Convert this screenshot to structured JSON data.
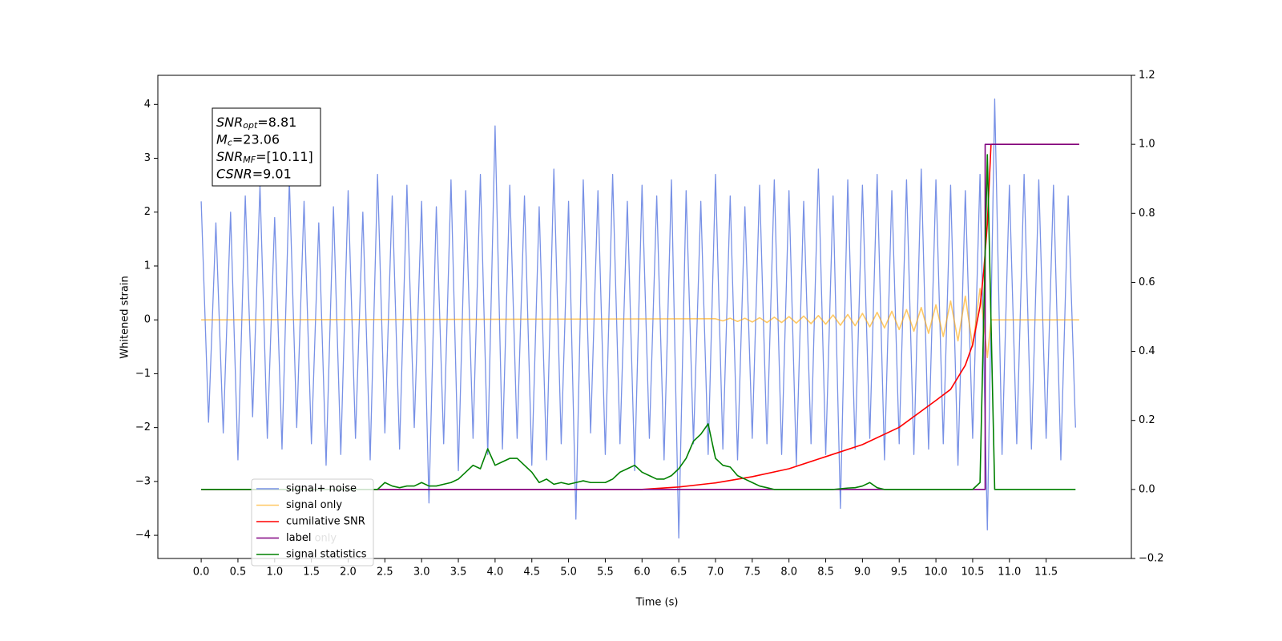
{
  "chart_data": {
    "type": "line",
    "xlabel": "Time (s)",
    "ylabel": "Whitened strain",
    "xlim": [
      -0.59,
      12.66
    ],
    "ylim": [
      -4.43,
      4.54
    ],
    "y2lim": [
      -0.2,
      1.2
    ],
    "xticks": [
      {
        "value": 0,
        "label": "0.0"
      },
      0.5,
      {
        "value": 1,
        "label": "1.0"
      },
      1.5,
      {
        "value": 2,
        "label": "2.0"
      },
      2.5,
      {
        "value": 3,
        "label": "3.0"
      },
      3.5,
      {
        "value": 4,
        "label": "4.0"
      },
      4.5,
      {
        "value": 5,
        "label": "5.0"
      },
      5.5,
      {
        "value": 6,
        "label": "6.0"
      },
      6.5,
      {
        "value": 7,
        "label": "7.0"
      },
      7.5,
      {
        "value": 8,
        "label": "8.0"
      },
      8.5,
      {
        "value": 9,
        "label": "9.0"
      },
      9.5,
      {
        "value": 10,
        "label": "10.0"
      },
      10.5,
      {
        "value": 11,
        "label": "11.0"
      },
      11.5
    ],
    "yticks": [
      {
        "value": -4,
        "label": "−4"
      },
      {
        "value": -3,
        "label": "−3"
      },
      {
        "value": -2,
        "label": "−2"
      },
      {
        "value": -1,
        "label": "−1"
      },
      0,
      1,
      2,
      3,
      4
    ],
    "y2ticks": [
      {
        "value": -0.2,
        "label": "−0.2"
      },
      {
        "value": 0,
        "label": "0.0"
      },
      0.2,
      0.4,
      0.6,
      0.8,
      {
        "value": 1,
        "label": "1.0"
      },
      1.2
    ],
    "annotations": [
      {
        "symbol": "SNR",
        "subscript": "opt",
        "text": "=8.81"
      },
      {
        "symbol": "M",
        "subscript": "c",
        "text": "=23.06"
      },
      {
        "symbol": "SNR",
        "subscript": "MF",
        "text": "=[10.11]"
      },
      {
        "symbol": "CSNR",
        "subscript": "",
        "text": "=9.01"
      }
    ],
    "hidden_legend_text": "label only",
    "legend": "lower left",
    "series": [
      {
        "name": "signal+ noise",
        "color": "#7891e6",
        "x": [
          0,
          0.1,
          0.2,
          0.3,
          0.4,
          0.5,
          0.6,
          0.7,
          0.8,
          0.9,
          1,
          1.1,
          1.2,
          1.3,
          1.4,
          1.5,
          1.6,
          1.7,
          1.8,
          1.9,
          2,
          2.1,
          2.2,
          2.3,
          2.4,
          2.5,
          2.6,
          2.7,
          2.8,
          2.9,
          3,
          3.1,
          3.2,
          3.3,
          3.4,
          3.5,
          3.6,
          3.7,
          3.8,
          3.9,
          4,
          4.1,
          4.2,
          4.3,
          4.4,
          4.5,
          4.6,
          4.7,
          4.8,
          4.9,
          5,
          5.1,
          5.2,
          5.3,
          5.4,
          5.5,
          5.6,
          5.7,
          5.8,
          5.9,
          6,
          6.1,
          6.2,
          6.3,
          6.4,
          6.5,
          6.6,
          6.7,
          6.8,
          6.9,
          7,
          7.1,
          7.2,
          7.3,
          7.4,
          7.5,
          7.6,
          7.7,
          7.8,
          7.9,
          8,
          8.1,
          8.2,
          8.3,
          8.4,
          8.5,
          8.6,
          8.7,
          8.8,
          8.9,
          9,
          9.1,
          9.2,
          9.3,
          9.4,
          9.5,
          9.6,
          9.7,
          9.8,
          9.9,
          10,
          10.1,
          10.2,
          10.3,
          10.4,
          10.5,
          10.6,
          10.7,
          10.8,
          10.9,
          11,
          11.1,
          11.2,
          11.3,
          11.4,
          11.5,
          11.6,
          11.7,
          11.8,
          11.9
        ],
        "values": [
          2.2,
          -1.9,
          1.8,
          -2.1,
          2.0,
          -2.6,
          2.3,
          -1.8,
          2.5,
          -2.2,
          1.9,
          -2.4,
          2.6,
          -2.0,
          2.2,
          -2.3,
          1.8,
          -2.7,
          2.1,
          -2.5,
          2.4,
          -2.2,
          2.0,
          -2.6,
          2.7,
          -2.1,
          2.3,
          -2.4,
          2.5,
          -2.0,
          2.2,
          -3.4,
          2.1,
          -2.3,
          2.6,
          -2.8,
          2.4,
          -2.2,
          2.7,
          -2.5,
          3.6,
          -2.4,
          2.5,
          -2.2,
          2.3,
          -2.7,
          2.1,
          -2.6,
          2.8,
          -2.3,
          2.2,
          -3.7,
          2.6,
          -2.1,
          2.4,
          -2.5,
          2.7,
          -2.3,
          2.2,
          -2.8,
          2.5,
          -2.2,
          2.3,
          -2.6,
          2.6,
          -4.05,
          2.4,
          -2.3,
          2.2,
          -2.5,
          2.7,
          -2.4,
          2.3,
          -2.6,
          2.1,
          -2.2,
          2.5,
          -2.3,
          2.6,
          -2.5,
          2.4,
          -2.7,
          2.2,
          -2.3,
          2.8,
          -2.5,
          2.3,
          -3.5,
          2.6,
          -2.4,
          2.5,
          -2.2,
          2.7,
          -2.6,
          2.4,
          -2.3,
          2.6,
          -2.5,
          2.8,
          -2.4,
          2.6,
          -2.3,
          2.5,
          -2.7,
          2.4,
          -2.2,
          2.7,
          -3.9,
          4.1,
          -2.5,
          2.5,
          -2.3,
          2.7,
          -2.4,
          2.6,
          -2.2,
          2.5,
          -2.6,
          2.3,
          -2.0
        ]
      },
      {
        "name": "signal only",
        "color": "#ffa500",
        "x": [
          0,
          7,
          7.1,
          7.2,
          7.3,
          7.4,
          7.5,
          7.6,
          7.7,
          7.8,
          7.9,
          8,
          8.1,
          8.2,
          8.3,
          8.4,
          8.5,
          8.6,
          8.7,
          8.8,
          8.9,
          9,
          9.1,
          9.2,
          9.3,
          9.4,
          9.5,
          9.6,
          9.7,
          9.8,
          9.9,
          10,
          10.1,
          10.2,
          10.3,
          10.4,
          10.5,
          10.6,
          10.7,
          10.75,
          11.95
        ],
        "values": [
          0,
          0.02,
          -0.02,
          0.03,
          -0.03,
          0.03,
          -0.04,
          0.04,
          -0.05,
          0.05,
          -0.05,
          0.06,
          -0.06,
          0.07,
          -0.07,
          0.08,
          -0.08,
          0.09,
          -0.1,
          0.1,
          -0.11,
          0.12,
          -0.13,
          0.14,
          -0.15,
          0.16,
          -0.18,
          0.19,
          -0.21,
          0.23,
          -0.25,
          0.28,
          -0.31,
          0.35,
          -0.39,
          0.44,
          -0.5,
          0.58,
          -0.7,
          0,
          0
        ]
      },
      {
        "name": "cumilative SNR",
        "color": "#ff0000",
        "axis": "y2",
        "x": [
          0,
          6,
          6.5,
          7,
          7.5,
          8,
          8.5,
          9,
          9.5,
          10,
          10.2,
          10.4,
          10.5,
          10.6,
          10.65,
          10.7,
          10.75,
          11.95
        ],
        "values": [
          0,
          0,
          0.007,
          0.019,
          0.037,
          0.06,
          0.095,
          0.13,
          0.18,
          0.258,
          0.29,
          0.36,
          0.42,
          0.53,
          0.63,
          0.77,
          1,
          1
        ]
      },
      {
        "name": "label",
        "color": "#800080",
        "axis": "y2",
        "x": [
          0,
          10.67,
          10.67,
          11.95
        ],
        "values": [
          0,
          0,
          1,
          1
        ]
      },
      {
        "name": "signal statistics",
        "color": "#008000",
        "axis": "y2",
        "x": [
          0,
          0.1,
          0.2,
          0.3,
          0.4,
          0.5,
          0.6,
          0.7,
          0.8,
          0.9,
          1,
          1.1,
          1.2,
          1.3,
          1.4,
          1.5,
          1.6,
          1.7,
          1.8,
          1.9,
          2,
          2.1,
          2.2,
          2.3,
          2.4,
          2.5,
          2.6,
          2.7,
          2.8,
          2.9,
          3,
          3.1,
          3.2,
          3.3,
          3.4,
          3.5,
          3.6,
          3.7,
          3.8,
          3.9,
          4,
          4.1,
          4.2,
          4.3,
          4.4,
          4.5,
          4.6,
          4.7,
          4.8,
          4.9,
          5,
          5.1,
          5.2,
          5.3,
          5.4,
          5.5,
          5.6,
          5.7,
          5.8,
          5.9,
          6,
          6.1,
          6.2,
          6.3,
          6.4,
          6.5,
          6.6,
          6.7,
          6.8,
          6.9,
          7,
          7.1,
          7.2,
          7.3,
          7.4,
          7.5,
          7.6,
          7.7,
          7.8,
          7.9,
          8,
          8.1,
          8.2,
          8.3,
          8.4,
          8.5,
          8.6,
          8.7,
          8.8,
          8.9,
          9,
          9.1,
          9.2,
          9.3,
          9.4,
          9.5,
          9.6,
          9.7,
          9.8,
          9.9,
          10,
          10.1,
          10.2,
          10.3,
          10.4,
          10.5,
          10.6,
          10.7,
          10.8,
          10.9,
          11,
          11.1,
          11.2,
          11.3,
          11.4,
          11.5,
          11.6,
          11.7,
          11.8,
          11.9
        ],
        "values": [
          0,
          0,
          0,
          0,
          0,
          0,
          0,
          0,
          0,
          0,
          0,
          0,
          0,
          0,
          0,
          0,
          0,
          0,
          0,
          0,
          0,
          0,
          0,
          0,
          0,
          0.02,
          0.01,
          0.005,
          0.01,
          0.01,
          0.02,
          0.01,
          0.01,
          0.015,
          0.02,
          0.03,
          0.05,
          0.07,
          0.06,
          0.118,
          0.07,
          0.08,
          0.09,
          0.09,
          0.07,
          0.05,
          0.02,
          0.03,
          0.015,
          0.02,
          0.015,
          0.02,
          0.025,
          0.02,
          0.02,
          0.02,
          0.03,
          0.05,
          0.06,
          0.07,
          0.05,
          0.04,
          0.03,
          0.03,
          0.04,
          0.06,
          0.09,
          0.14,
          0.16,
          0.19,
          0.09,
          0.07,
          0.065,
          0.04,
          0.03,
          0.02,
          0.01,
          0.005,
          0,
          0,
          0,
          0,
          0,
          0,
          0,
          0,
          0,
          0.002,
          0.004,
          0.005,
          0.01,
          0.02,
          0.005,
          0,
          0,
          0,
          0,
          0,
          0,
          0,
          0,
          0,
          0,
          0,
          0,
          0,
          0.02,
          0.97,
          0,
          0,
          0,
          0,
          0,
          0,
          0,
          0,
          0,
          0,
          0,
          0
        ]
      }
    ]
  }
}
